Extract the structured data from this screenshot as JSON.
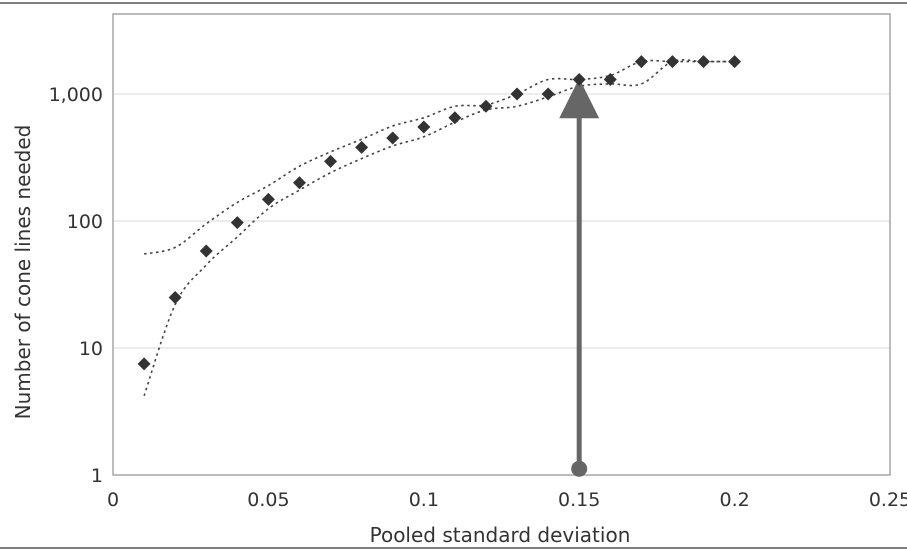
{
  "chart_data": {
    "type": "scatter",
    "title": "",
    "xlabel": "Pooled standard deviation",
    "ylabel": "Number of cone lines needed",
    "xlim": [
      0,
      0.25
    ],
    "ylim": [
      1,
      4000
    ],
    "y_scale": "log",
    "grid": "horizontal",
    "legend": "none",
    "x_ticks": [
      {
        "value": 0,
        "label": "0"
      },
      {
        "value": 0.05,
        "label": "0.05"
      },
      {
        "value": 0.1,
        "label": "0.1"
      },
      {
        "value": 0.15,
        "label": "0.15"
      },
      {
        "value": 0.2,
        "label": "0.2"
      },
      {
        "value": 0.25,
        "label": "0.25"
      }
    ],
    "y_ticks": [
      {
        "value": 1,
        "label": "1"
      },
      {
        "value": 10,
        "label": "10"
      },
      {
        "value": 100,
        "label": "100"
      },
      {
        "value": 1000,
        "label": "1,000"
      }
    ],
    "series": [
      {
        "marker": "diamond",
        "x": [
          0.01,
          0.02,
          0.03,
          0.04,
          0.05,
          0.06,
          0.07,
          0.08,
          0.09,
          0.1,
          0.11,
          0.12,
          0.13,
          0.14,
          0.15,
          0.16,
          0.17,
          0.18,
          0.19,
          0.2
        ],
        "y": [
          7.5,
          25,
          58,
          97,
          148,
          200,
          295,
          380,
          450,
          550,
          650,
          800,
          1000,
          1000,
          1300,
          1300,
          1800,
          1800,
          1800,
          1800
        ]
      }
    ],
    "bounds": {
      "upper": {
        "x": [
          0.01,
          0.02,
          0.03,
          0.04,
          0.05,
          0.06,
          0.07,
          0.08,
          0.09,
          0.1,
          0.11,
          0.12,
          0.13,
          0.14,
          0.15,
          0.16,
          0.17,
          0.18,
          0.19,
          0.2
        ],
        "y": [
          55,
          62,
          95,
          140,
          190,
          270,
          350,
          440,
          560,
          650,
          800,
          820,
          1000,
          1300,
          1300,
          1400,
          1800,
          1800,
          1800,
          1800
        ]
      },
      "lower": {
        "x": [
          0.01,
          0.02,
          0.03,
          0.04,
          0.05,
          0.06,
          0.07,
          0.08,
          0.09,
          0.1,
          0.11,
          0.12,
          0.13,
          0.14,
          0.15,
          0.16,
          0.17,
          0.18,
          0.19,
          0.2
        ],
        "y": [
          4.2,
          22,
          45,
          75,
          125,
          175,
          240,
          310,
          390,
          460,
          600,
          750,
          800,
          950,
          1150,
          1200,
          1200,
          1800,
          1800,
          1800
        ]
      }
    },
    "annotation": {
      "type": "arrow",
      "x": 0.15,
      "y_from": 1.12,
      "y_to": 1150
    },
    "colors": {
      "marker": "#333333",
      "bound_line": "#444444",
      "arrow": "#666666",
      "grid": "#d9d9d9",
      "frame": "#a6a6a6"
    }
  }
}
